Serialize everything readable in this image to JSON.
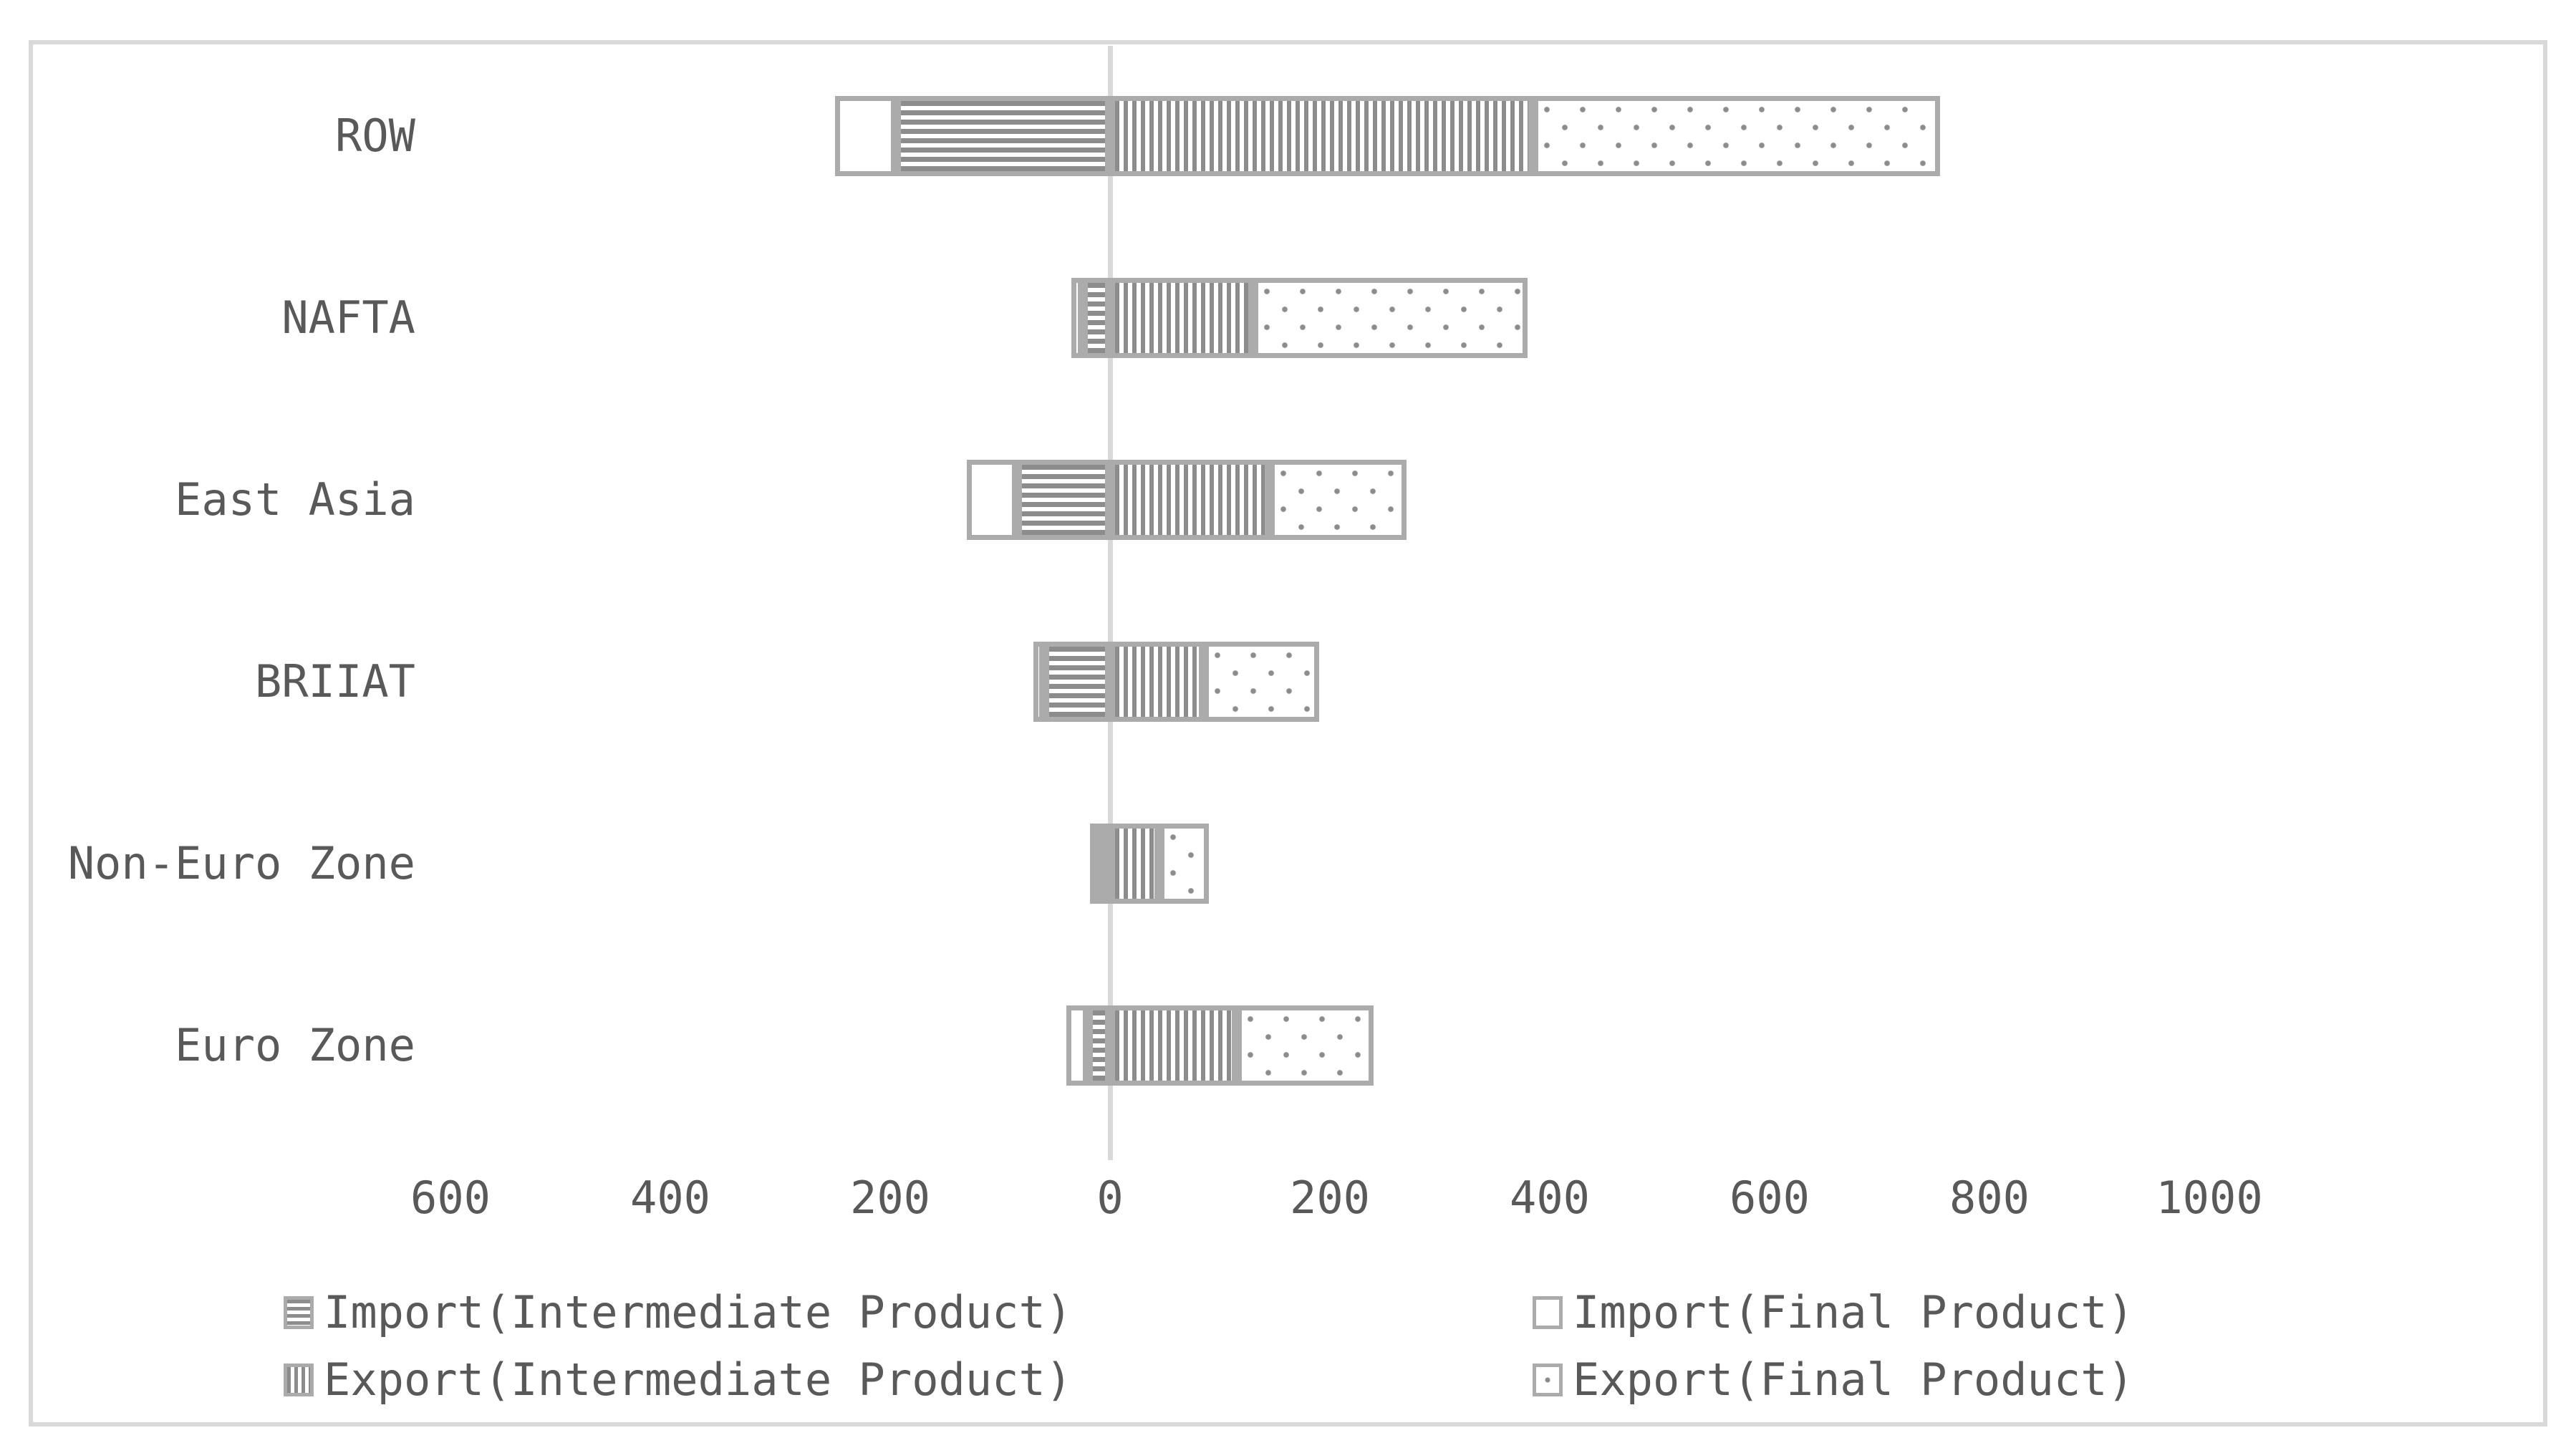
{
  "colors": {
    "background": "#ffffff",
    "chart_border": "#d9d9d9",
    "zero_gridline": "#d9d9d9",
    "segment_border": "#ababab",
    "pattern_fill": "#8c8c8c",
    "text": "#595959"
  },
  "chart_data": {
    "type": "bar",
    "orientation": "horizontal",
    "diverging": true,
    "title": "",
    "xlabel": "",
    "ylabel": "",
    "categories": [
      "ROW",
      "NAFTA",
      "East Asia",
      "BRIIAT",
      "Non-Euro Zone",
      "Euro Zone"
    ],
    "series": [
      {
        "name": "Import(Intermediate Product)",
        "pattern": "hlines",
        "side": "import",
        "values": [
          -195,
          -25,
          -85,
          -60,
          -5,
          -20
        ]
      },
      {
        "name": "Import(Final Product)",
        "pattern": "plain",
        "side": "import",
        "values": [
          -55,
          -10,
          -45,
          -10,
          -5,
          -20
        ]
      },
      {
        "name": "Export(Intermediate Product)",
        "pattern": "vlines",
        "side": "export",
        "values": [
          385,
          130,
          145,
          85,
          45,
          115
        ]
      },
      {
        "name": "Export(Final Product)",
        "pattern": "dots",
        "side": "export",
        "values": [
          370,
          250,
          125,
          105,
          45,
          125
        ]
      }
    ],
    "stacking_note": "Intermediate-product segment is adjacent to the zero axis on each side; final-product segment stacks outward",
    "xticks": [
      {
        "value": -600,
        "label": "600"
      },
      {
        "value": -400,
        "label": "400"
      },
      {
        "value": -200,
        "label": "200"
      },
      {
        "value": 0,
        "label": "0"
      },
      {
        "value": 200,
        "label": "200"
      },
      {
        "value": 400,
        "label": "400"
      },
      {
        "value": 600,
        "label": "600"
      },
      {
        "value": 800,
        "label": "800"
      },
      {
        "value": 1000,
        "label": "1000"
      }
    ],
    "xlim": [
      -980,
      1310
    ],
    "grid": {
      "zero_line": true,
      "other_gridlines": false
    },
    "legend": {
      "position": "bottom",
      "columns": 2,
      "row_major_order": [
        "Import(Intermediate Product)",
        "Import(Final Product)",
        "Export(Intermediate Product)",
        "Export(Final Product)"
      ]
    }
  }
}
